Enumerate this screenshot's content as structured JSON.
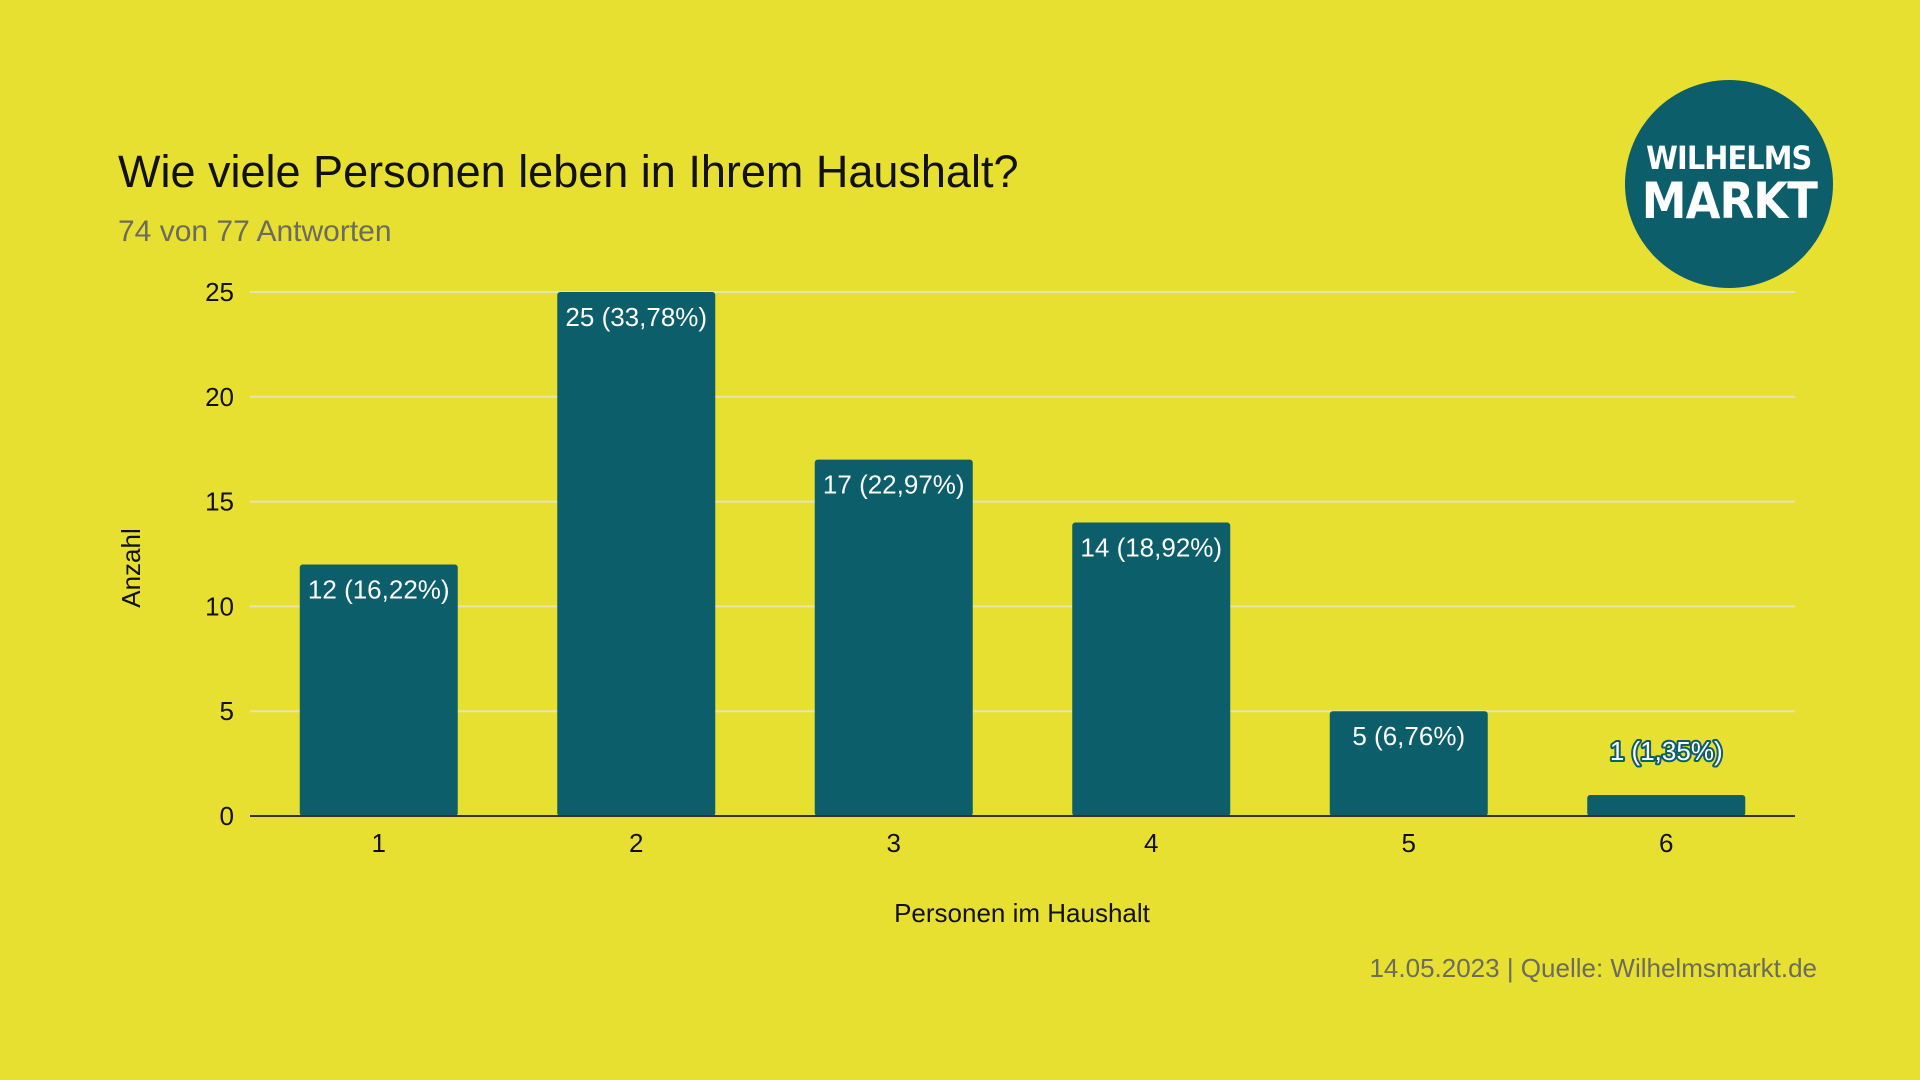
{
  "chart_data": {
    "type": "bar",
    "title": "Wie viele Personen leben in Ihrem Haushalt?",
    "subtitle": "74 von 77 Antworten",
    "xlabel": "Personen im Haushalt",
    "ylabel": "Anzahl",
    "categories": [
      "1",
      "2",
      "3",
      "4",
      "5",
      "6"
    ],
    "values": [
      12,
      25,
      17,
      14,
      5,
      1
    ],
    "data_labels": [
      "12 (16,22%)",
      "25 (33,78%)",
      "17 (22,97%)",
      "14 (18,92%)",
      "5 (6,76%)",
      "1 (1,35%)"
    ],
    "ylim": [
      0,
      25
    ],
    "yticks": [
      0,
      5,
      10,
      15,
      20,
      25
    ],
    "grid": true,
    "bar_color": "#0B5E6A",
    "background_color": "#E8E030"
  },
  "logo": {
    "line1": "WILHELMS",
    "line2": "MARKT",
    "color": "#0B5E6A"
  },
  "footer": {
    "source": "14.05.2023 | Quelle: Wilhelmsmarkt.de"
  }
}
